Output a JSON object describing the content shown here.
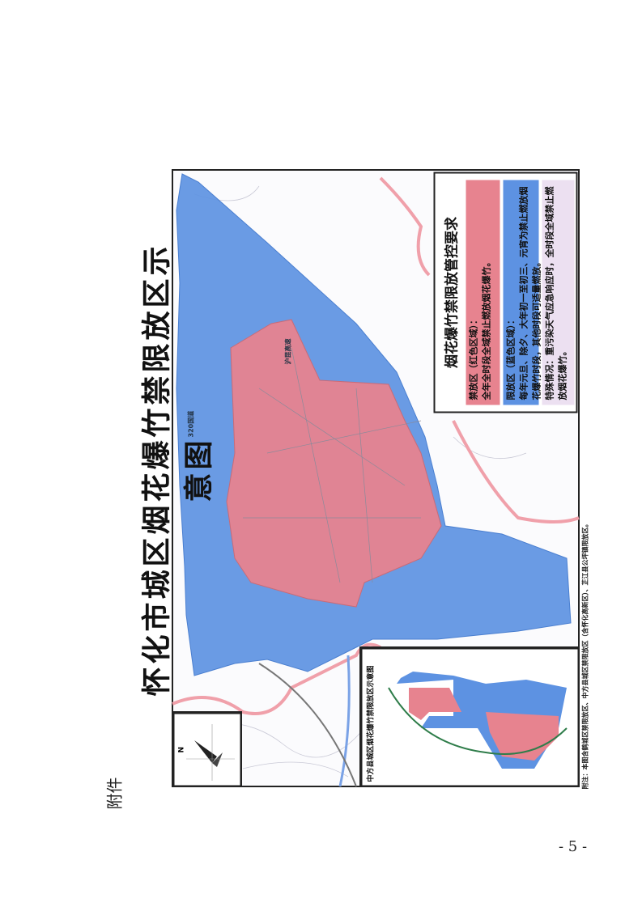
{
  "attachment_label": "附件",
  "map": {
    "title": "怀化市城区烟花爆竹禁限放区示意图",
    "colors": {
      "prohibited_zone": "#e7838f",
      "restricted_zone": "#5d92e2",
      "special_zone": "#ece0f1",
      "boundary": "#f0a0aa"
    },
    "legend": {
      "title": "烟花爆竹禁限放管控要求",
      "prohibited": {
        "heading": "禁放区（红色区域）：",
        "text": "全年全时段全域禁止燃放烟花爆竹。"
      },
      "restricted": {
        "heading": "限放区（蓝色区域）：",
        "text": "每年元旦、除夕、大年初一至初三、元宵为禁止燃放烟花爆竹时段，其他时段可适量燃放。"
      },
      "special": {
        "text": "特殊情况：重污染天气应急响应时，全时段全域禁止燃放烟花爆竹。"
      }
    },
    "inset": {
      "title": "中方县城区烟花爆竹禁限放区示意图"
    },
    "compass": {
      "label": "N",
      "icon": "north-arrow-icon"
    },
    "road_labels": [
      "320国道",
      "沪昆高速"
    ],
    "footnote": "附注：本图含鹤城区禁限放区、中方县城区禁限放区（含怀化高新区）、芷江县公坪镇限放区。"
  },
  "page_number": "- 5 -"
}
